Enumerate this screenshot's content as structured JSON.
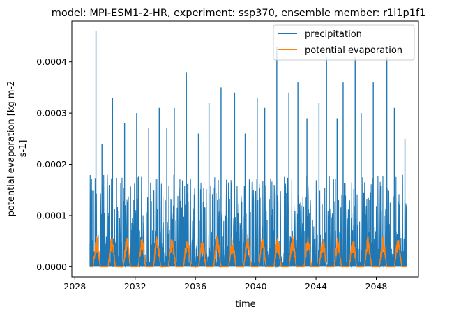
{
  "chart_data": {
    "type": "line",
    "title": "model: MPI-ESM1-2-HR, experiment: ssp370, ensemble member: r1i1p1f1",
    "xlabel": "time",
    "ylabel_lines": [
      "potential evaporation [kg m-2",
      "s-1]"
    ],
    "xlim": [
      2027.8,
      2050.8
    ],
    "ylim": [
      -2e-05,
      0.00048
    ],
    "x_ticks": [
      2028,
      2032,
      2036,
      2040,
      2044,
      2048
    ],
    "x_tick_labels": [
      "2028",
      "2032",
      "2036",
      "2040",
      "2044",
      "2048"
    ],
    "y_ticks": [
      0,
      0.0001,
      0.0002,
      0.0003,
      0.0004
    ],
    "y_tick_labels": [
      "0.0000",
      "0.0001",
      "0.0002",
      "0.0003",
      "0.0004"
    ],
    "grid": false,
    "legend_position": "upper right",
    "series": [
      {
        "name": "precipitation",
        "color": "#1f77b4",
        "x_range": [
          2029.0,
          2050.0
        ],
        "description_values": {
          "typical_daily_max": 0.00012,
          "baseline": 0.0,
          "notable_peaks": [
            [
              2029.1,
              0.000172
            ],
            [
              2029.4,
              0.00046
            ],
            [
              2029.8,
              0.00024
            ],
            [
              2030.5,
              0.00033
            ],
            [
              2031.3,
              0.00028
            ],
            [
              2032.1,
              0.0003
            ],
            [
              2032.9,
              0.00027
            ],
            [
              2033.6,
              0.00031
            ],
            [
              2034.1,
              0.00027
            ],
            [
              2034.6,
              0.00031
            ],
            [
              2035.4,
              0.00038
            ],
            [
              2036.2,
              0.00026
            ],
            [
              2036.9,
              0.00032
            ],
            [
              2037.7,
              0.00035
            ],
            [
              2038.6,
              0.00034
            ],
            [
              2039.3,
              0.00026
            ],
            [
              2040.1,
              0.00033
            ],
            [
              2040.6,
              0.00031
            ],
            [
              2041.4,
              0.00043
            ],
            [
              2042.2,
              0.00034
            ],
            [
              2042.8,
              0.00036
            ],
            [
              2043.4,
              0.00029
            ],
            [
              2044.2,
              0.00032
            ],
            [
              2044.7,
              0.00041
            ],
            [
              2045.4,
              0.00029
            ],
            [
              2045.8,
              0.00036
            ],
            [
              2046.6,
              0.00041
            ],
            [
              2047.0,
              0.0003
            ],
            [
              2047.8,
              0.00036
            ],
            [
              2048.7,
              0.00041
            ],
            [
              2049.2,
              0.00031
            ],
            [
              2049.9,
              0.00025
            ]
          ]
        }
      },
      {
        "name": "potential evaporation",
        "color": "#ff7f0e",
        "x_range": [
          2029.0,
          2050.0
        ],
        "seasonal_peak": 6e-05,
        "seasonal_min": 0.0,
        "period_years": 1
      }
    ]
  }
}
